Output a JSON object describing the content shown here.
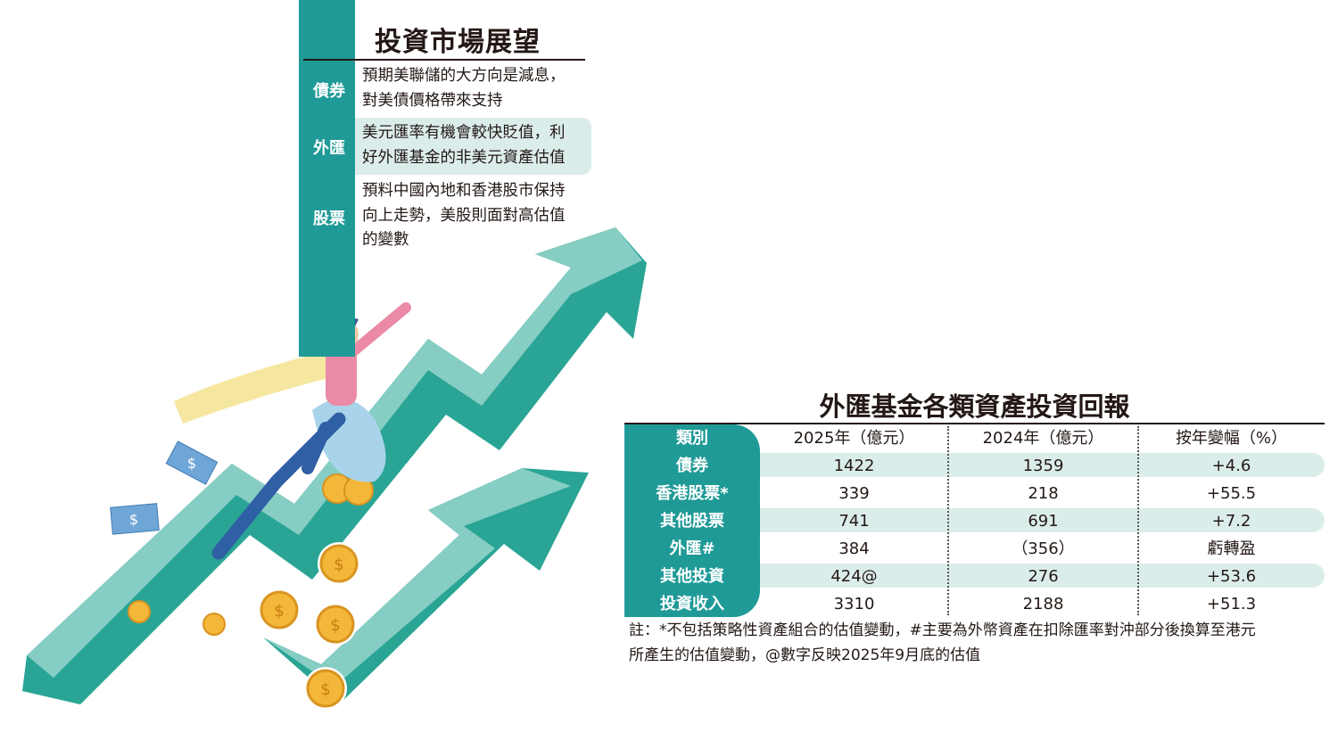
{
  "outlook": {
    "title": "投資市場展望",
    "items": [
      {
        "label": "債券",
        "lines": [
          "預期美聯儲的大方向是減息，",
          "對美債價格帶來支持"
        ]
      },
      {
        "label": "外匯",
        "lines": [
          "美元匯率有機會較快貶值，利",
          "好外匯基金的非美元資產估值"
        ]
      },
      {
        "label": "股票",
        "lines": [
          "預料中國內地和香港股市保持",
          "向上走勢，美股則面對高估值",
          "的變數"
        ]
      }
    ]
  },
  "table": {
    "title": "外匯基金各類資產投資回報",
    "headers": [
      "類別",
      "2025年（億元）",
      "2024年（億元）",
      "按年變幅（%）"
    ],
    "rows": [
      [
        "債券",
        "1422",
        "1359",
        "+4.6"
      ],
      [
        "香港股票*",
        "339",
        "218",
        "+55.5"
      ],
      [
        "其他股票",
        "741",
        "691",
        "+7.2"
      ],
      [
        "外匯#",
        "384",
        "（356）",
        "虧轉盈"
      ],
      [
        "其他投資",
        "424@",
        "276",
        "+53.6"
      ],
      [
        "投資收入",
        "3310",
        "2188",
        "+51.3"
      ]
    ],
    "notes": [
      "註：*不包括策略性資產組合的估值變動，#主要為外幣資產在扣除匯率對沖部分後換算至港元",
      "所產生的估值變動，@數字反映2025年9月底的估值"
    ]
  },
  "colors": {
    "teal": "#1f9a97",
    "light_teal": "#dbedeb",
    "arrow_light": "#86cdc4",
    "coin": "#f3b73a"
  },
  "coin_symbol": "$"
}
